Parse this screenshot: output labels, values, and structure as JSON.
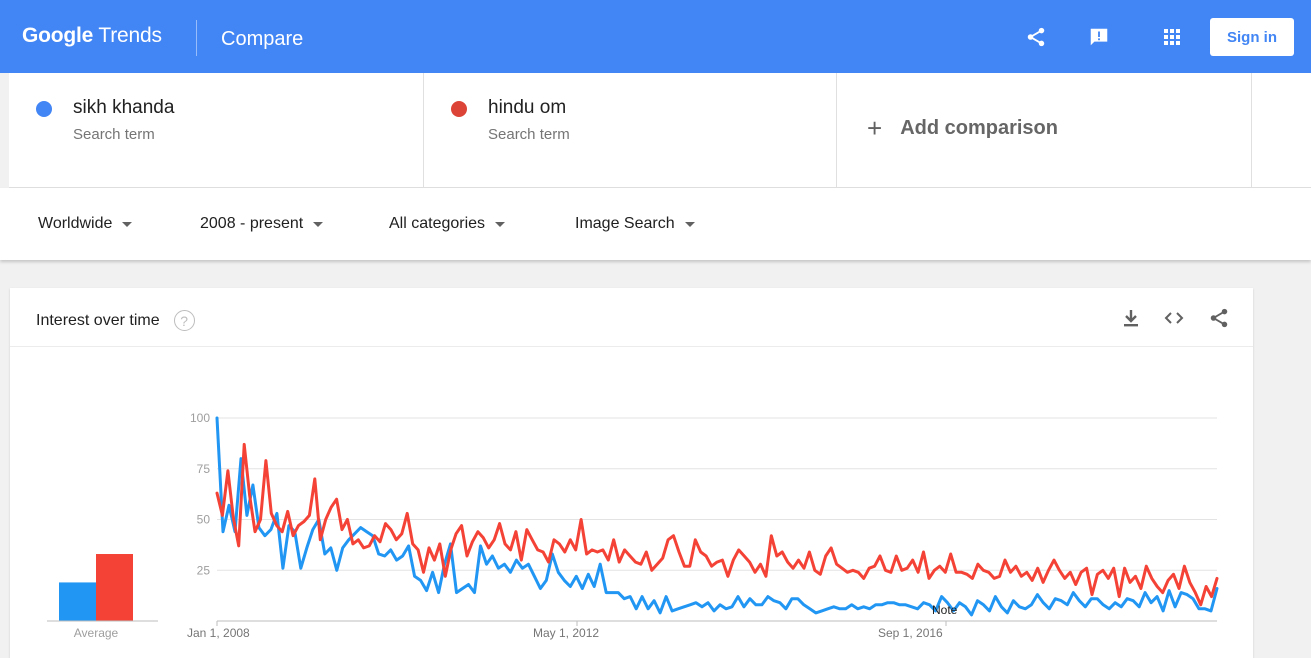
{
  "app": {
    "logo_bold": "Google",
    "logo_rest": " Trends",
    "page_title": "Compare",
    "sign_in": "Sign in"
  },
  "icons": {
    "share": "share-icon",
    "feedback": "feedback-icon",
    "apps": "apps-grid-icon",
    "download": "download-icon",
    "embed": "embed-code-icon",
    "help": "help-icon"
  },
  "colors": {
    "brand": "#4285f4",
    "term1": "#4285f4",
    "term2": "#db4437",
    "series1": "#2196f3",
    "series2": "#f44336"
  },
  "terms": [
    {
      "name": "sikh khanda",
      "type": "Search term"
    },
    {
      "name": "hindu om",
      "type": "Search term"
    }
  ],
  "add_comparison": "Add comparison",
  "filters": {
    "region": "Worldwide",
    "time": "2008 - present",
    "category": "All categories",
    "property": "Image Search"
  },
  "card": {
    "title": "Interest over time",
    "help_glyph": "?"
  },
  "chart_data": {
    "type": "line",
    "ylim": [
      0,
      100
    ],
    "yticks": [
      "100",
      "75",
      "50",
      "25"
    ],
    "xtick_labels": [
      "Jan 1, 2008",
      "May 1, 2012",
      "Sep 1, 2016"
    ],
    "note_label": "Note",
    "average_label": "Average",
    "average": {
      "sikh khanda": 19,
      "hindu om": 33
    },
    "series": [
      {
        "name": "sikh khanda",
        "color": "#2196f3",
        "values": [
          100,
          44,
          57,
          44,
          80,
          52,
          67,
          46,
          42,
          45,
          53,
          26,
          47,
          44,
          26,
          36,
          45,
          50,
          33,
          36,
          25,
          36,
          40,
          43,
          46,
          44,
          42,
          33,
          32,
          35,
          30,
          32,
          37,
          22,
          20,
          15,
          24,
          14,
          28,
          38,
          14,
          16,
          18,
          14,
          37,
          28,
          32,
          26,
          28,
          24,
          30,
          26,
          28,
          22,
          16,
          20,
          33,
          24,
          20,
          17,
          22,
          16,
          23,
          17,
          28,
          14,
          14,
          14,
          11,
          12,
          6,
          12,
          6,
          10,
          4,
          12,
          5,
          6,
          7,
          8,
          9,
          7,
          9,
          5,
          8,
          6,
          7,
          12,
          7,
          11,
          8,
          8,
          12,
          10,
          9,
          6,
          11,
          11,
          8,
          6,
          4,
          5,
          6,
          7,
          6,
          6,
          8,
          6,
          7,
          6,
          8,
          8,
          9,
          9,
          8,
          8,
          7,
          6,
          9,
          8,
          5,
          12,
          9,
          5,
          9,
          7,
          3,
          10,
          8,
          5,
          12,
          7,
          4,
          10,
          7,
          6,
          8,
          13,
          9,
          6,
          11,
          10,
          8,
          14,
          10,
          7,
          11,
          11,
          8,
          6,
          9,
          7,
          11,
          10,
          7,
          14,
          9,
          12,
          5,
          15,
          7,
          14,
          13,
          11,
          6,
          6,
          5,
          16
        ]
      },
      {
        "name": "hindu om",
        "color": "#f44336",
        "values": [
          63,
          52,
          74,
          51,
          37,
          87,
          62,
          44,
          50,
          79,
          53,
          47,
          44,
          54,
          42,
          47,
          49,
          52,
          70,
          40,
          50,
          56,
          60,
          45,
          50,
          38,
          40,
          36,
          37,
          42,
          39,
          48,
          45,
          40,
          43,
          53,
          38,
          35,
          24,
          36,
          30,
          38,
          22,
          35,
          43,
          47,
          32,
          39,
          44,
          41,
          36,
          40,
          48,
          38,
          35,
          44,
          30,
          45,
          40,
          35,
          34,
          29,
          40,
          38,
          34,
          40,
          35,
          50,
          33,
          35,
          34,
          35,
          30,
          40,
          29,
          35,
          32,
          29,
          28,
          34,
          25,
          28,
          31,
          40,
          42,
          34,
          27,
          27,
          40,
          34,
          32,
          27,
          29,
          30,
          22,
          30,
          35,
          32,
          29,
          24,
          28,
          22,
          42,
          32,
          34,
          29,
          26,
          30,
          26,
          34,
          25,
          23,
          32,
          36,
          28,
          26,
          24,
          25,
          24,
          21,
          26,
          27,
          32,
          25,
          24,
          32,
          25,
          26,
          30,
          24,
          34,
          21,
          25,
          27,
          24,
          33,
          24,
          24,
          23,
          21,
          28,
          25,
          24,
          21,
          22,
          30,
          24,
          27,
          22,
          24,
          20,
          26,
          19,
          25,
          30,
          25,
          21,
          24,
          18,
          24,
          26,
          13,
          23,
          25,
          21,
          26,
          12,
          26,
          19,
          22,
          16,
          27,
          21,
          17,
          14,
          20,
          23,
          16,
          27,
          19,
          14,
          8,
          17,
          12,
          21
        ]
      }
    ]
  }
}
